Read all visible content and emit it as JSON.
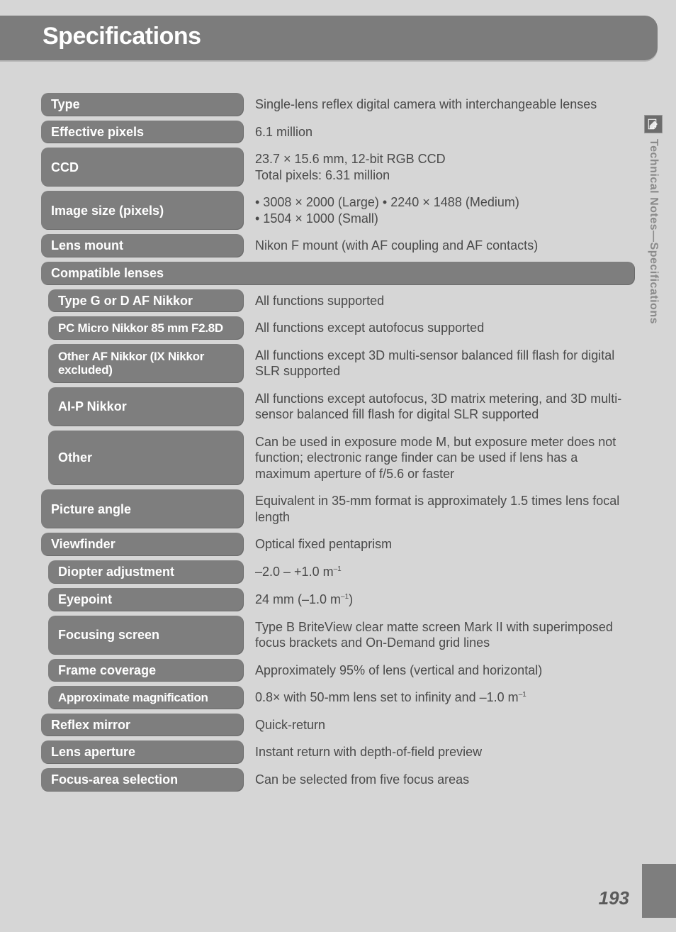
{
  "header": {
    "title": "Specifications"
  },
  "side": {
    "icon": "note-pencil-icon",
    "label": "Technical Notes—Specifications"
  },
  "page_number": "193",
  "rows": [
    {
      "level": 0,
      "label": "Type",
      "value": "Single-lens reflex digital camera with interchangeable lenses"
    },
    {
      "level": 0,
      "label": "Effective pixels",
      "value": "6.1 million"
    },
    {
      "level": 0,
      "label": "CCD",
      "value": "23.7 × 15.6 mm, 12-bit RGB CCD\nTotal pixels: 6.31 million"
    },
    {
      "level": 0,
      "label": "Image size (pixels)",
      "value_html": "• 3008 × 2000 (Large)          • 2240 × 1488 (Medium)\n• 1504 × 1000 (Small)"
    },
    {
      "level": 0,
      "label": "Lens mount",
      "value": "Nikon F mount (with AF coupling and AF contacts)"
    },
    {
      "level": 0,
      "label": "Compatible lenses",
      "full": true
    },
    {
      "level": 1,
      "label": "Type G or D AF Nikkor",
      "value": "All functions supported"
    },
    {
      "level": 1,
      "label": "PC Micro Nikkor 85 mm F2.8D",
      "narrow": true,
      "value": "All functions except autofocus supported"
    },
    {
      "level": 1,
      "label": "Other AF Nikkor (IX Nikkor excluded)",
      "narrow": true,
      "value": "All functions except 3D multi-sensor balanced fill flash for digital SLR supported"
    },
    {
      "level": 1,
      "label": "AI-P Nikkor",
      "value": "All functions except autofocus, 3D matrix metering, and 3D multi-sensor balanced fill flash for digital SLR supported"
    },
    {
      "level": 1,
      "label": "Other",
      "value": "Can be used in exposure mode M, but exposure meter does not function; electronic range finder can be used if lens has a maximum aperture of f/5.6 or faster"
    },
    {
      "level": 0,
      "label": "Picture angle",
      "value": "Equivalent in 35-mm format is approximately 1.5 times lens focal length"
    },
    {
      "level": 0,
      "label": "Viewfinder",
      "value": "Optical fixed pentaprism"
    },
    {
      "level": 1,
      "label": "Diopter adjustment",
      "value_html": "–2.0 – +1.0 m<sup>–1</sup>"
    },
    {
      "level": 1,
      "label": "Eyepoint",
      "value_html": "24 mm (–1.0 m<sup>–1</sup>)"
    },
    {
      "level": 1,
      "label": "Focusing screen",
      "value": "Type B BriteView clear matte screen Mark II with superimposed focus brackets and On-Demand grid lines"
    },
    {
      "level": 1,
      "label": "Frame coverage",
      "value": "Approximately 95% of lens (vertical and horizontal)"
    },
    {
      "level": 1,
      "label": "Approximate magnification",
      "narrow": true,
      "value_html": "0.8× with 50-mm lens set to infinity and –1.0 m<sup>–1</sup>"
    },
    {
      "level": 0,
      "label": "Reflex mirror",
      "value": "Quick-return"
    },
    {
      "level": 0,
      "label": "Lens aperture",
      "value": "Instant return with depth-of-field preview"
    },
    {
      "level": 0,
      "label": "Focus-area selection",
      "value": "Can be selected from five focus areas"
    }
  ],
  "colors": {
    "bg": "#d6d6d6",
    "banner": "#7c7c7c",
    "label_bg": "#7e7e7e",
    "text": "#4a4a4a",
    "side_text": "#8a8a8a"
  }
}
